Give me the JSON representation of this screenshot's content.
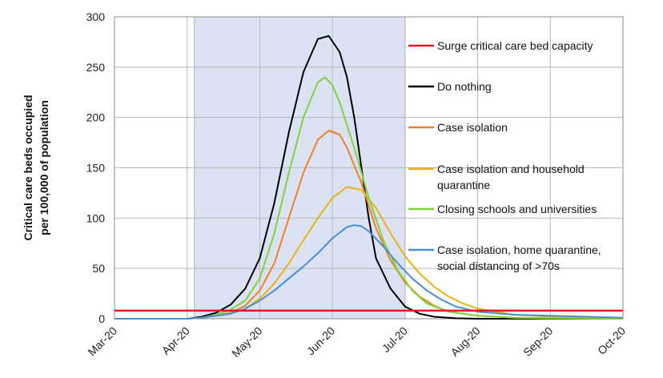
{
  "chart_data": {
    "type": "line",
    "title": "",
    "ylabel_lines": [
      "Critical care beds occupied",
      "per 100,000 of population"
    ],
    "xlabel": "",
    "ylim": [
      0,
      300
    ],
    "yticks": [
      0,
      50,
      100,
      150,
      200,
      250,
      300
    ],
    "xlim": [
      0,
      7
    ],
    "xtick_labels": [
      "Mar-20",
      "Apr-20",
      "May-20",
      "Jun-20",
      "Jul-20",
      "Aug-20",
      "Sep-20",
      "Oct-20"
    ],
    "shaded_region": {
      "from": 1.1,
      "to": 4.0,
      "color": "#dbe2f3"
    },
    "grid": true,
    "legend_position": "right, inside plot",
    "series": [
      {
        "name": "Surge critical care bed capacity",
        "color": "#e8161e",
        "x": [
          0,
          7
        ],
        "y": [
          8,
          8
        ]
      },
      {
        "name": "Do nothing",
        "color": "#000000",
        "x": [
          0,
          1.0,
          1.2,
          1.4,
          1.6,
          1.8,
          2.0,
          2.2,
          2.4,
          2.6,
          2.8,
          2.95,
          3.1,
          3.2,
          3.3,
          3.4,
          3.5,
          3.6,
          3.8,
          4.0,
          4.2,
          4.4,
          4.7,
          5.0,
          7.0
        ],
        "y": [
          0,
          0,
          2,
          6,
          14,
          30,
          60,
          115,
          185,
          245,
          278,
          281,
          265,
          240,
          200,
          150,
          100,
          60,
          30,
          12,
          5,
          2,
          0.5,
          0,
          0
        ]
      },
      {
        "name": "Case isolation",
        "color": "#f07f2a",
        "x": [
          0,
          1.0,
          1.2,
          1.4,
          1.6,
          1.8,
          2.0,
          2.2,
          2.4,
          2.6,
          2.8,
          2.95,
          3.1,
          3.2,
          3.4,
          3.6,
          3.8,
          4.0,
          4.2,
          4.4,
          4.6,
          5.0,
          5.5,
          6.0,
          7.0
        ],
        "y": [
          0,
          0,
          1,
          3,
          6,
          13,
          28,
          55,
          100,
          145,
          178,
          187,
          183,
          170,
          135,
          90,
          58,
          36,
          22,
          13,
          7,
          3,
          1,
          0.5,
          0
        ]
      },
      {
        "name": "Case isolation and household quarantine",
        "color": "#e9b217",
        "x": [
          0,
          1.0,
          1.2,
          1.4,
          1.6,
          1.8,
          2.0,
          2.2,
          2.4,
          2.6,
          2.8,
          3.0,
          3.2,
          3.4,
          3.6,
          3.8,
          4.0,
          4.2,
          4.4,
          4.6,
          4.8,
          5.0,
          5.5,
          6.0,
          7.0
        ],
        "y": [
          0,
          0,
          1,
          3,
          5,
          10,
          20,
          35,
          55,
          78,
          100,
          120,
          131,
          128,
          110,
          85,
          62,
          45,
          32,
          22,
          15,
          10,
          4,
          2,
          1
        ]
      },
      {
        "name": "Closing schools and universities",
        "color": "#7fd43a",
        "x": [
          0,
          1.0,
          1.2,
          1.4,
          1.6,
          1.8,
          2.0,
          2.2,
          2.4,
          2.6,
          2.8,
          2.9,
          3.0,
          3.1,
          3.3,
          3.5,
          3.7,
          3.9,
          4.1,
          4.3,
          4.6,
          5.0,
          5.5,
          6.0,
          7.0
        ],
        "y": [
          0,
          0,
          1,
          4,
          9,
          18,
          40,
          85,
          145,
          200,
          235,
          240,
          232,
          215,
          170,
          120,
          78,
          48,
          28,
          15,
          7,
          3,
          1,
          0.5,
          0
        ]
      },
      {
        "name": "Case isolation, home quarantine, social distancing of >70s",
        "color": "#4a8fd2",
        "x": [
          0,
          1.0,
          1.2,
          1.4,
          1.6,
          1.8,
          2.0,
          2.2,
          2.4,
          2.6,
          2.8,
          3.0,
          3.2,
          3.3,
          3.4,
          3.5,
          3.7,
          3.9,
          4.1,
          4.3,
          4.5,
          4.7,
          5.0,
          5.5,
          6.0,
          6.5,
          7.0
        ],
        "y": [
          0,
          0,
          1,
          3,
          5,
          10,
          18,
          28,
          40,
          52,
          65,
          80,
          91,
          93,
          92,
          87,
          72,
          55,
          40,
          28,
          19,
          12,
          7,
          4,
          3,
          2,
          1
        ]
      }
    ],
    "legend_labels": [
      [
        "Surge critical care bed capacity"
      ],
      [
        "Do nothing"
      ],
      [
        "Case isolation"
      ],
      [
        "Case isolation and household",
        "quarantine"
      ],
      [
        "Closing schools and universities"
      ],
      [
        "Case isolation, home quarantine,",
        "social distancing of >70s"
      ]
    ]
  }
}
